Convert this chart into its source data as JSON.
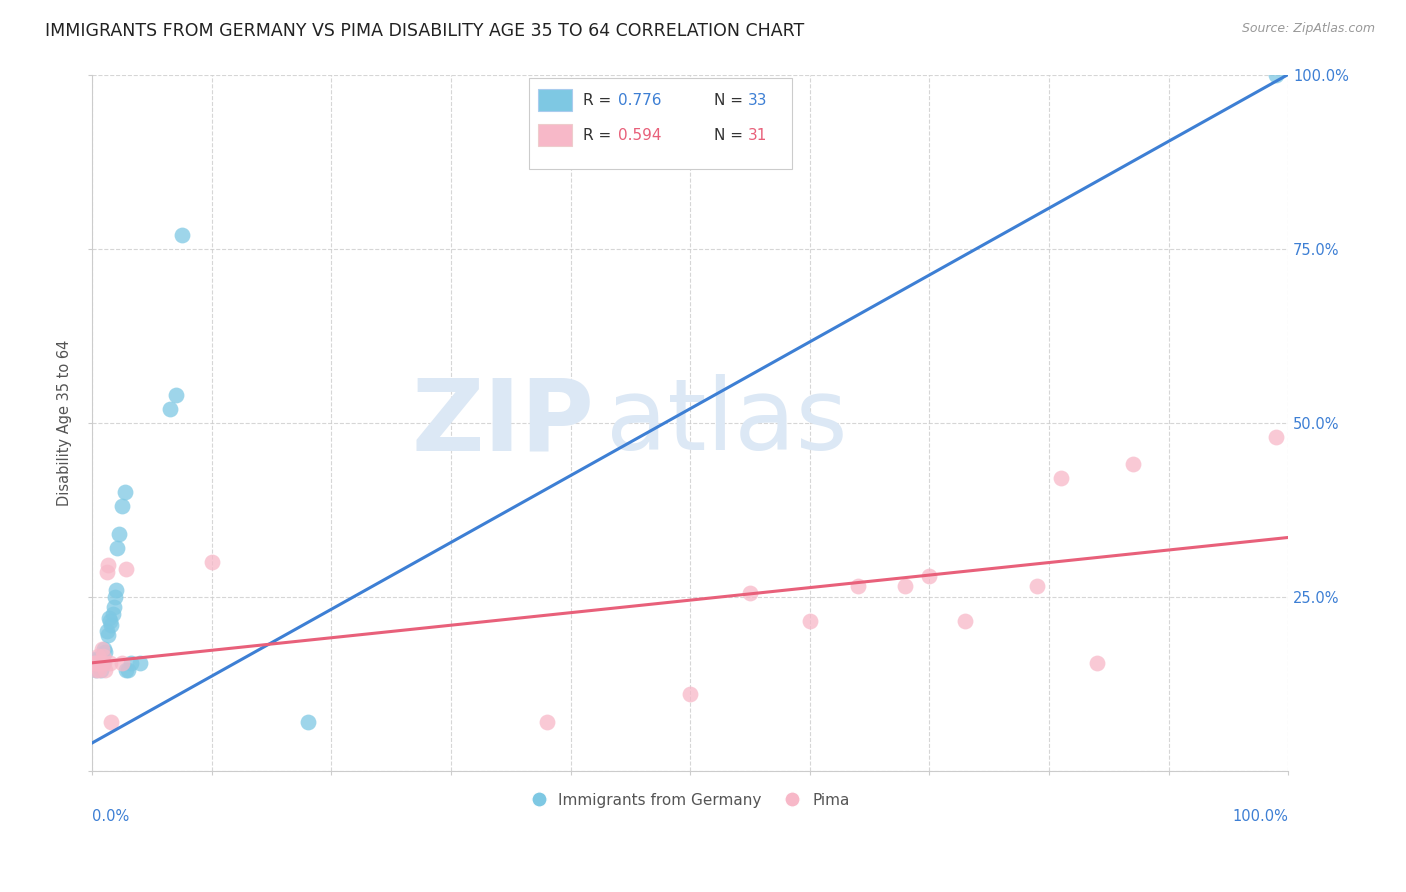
{
  "title": "IMMIGRANTS FROM GERMANY VS PIMA DISABILITY AGE 35 TO 64 CORRELATION CHART",
  "source": "Source: ZipAtlas.com",
  "ylabel": "Disability Age 35 to 64",
  "watermark_zip": "ZIP",
  "watermark_atlas": "atlas",
  "blue_color": "#7ec8e3",
  "pink_color": "#f7b8c8",
  "blue_line_color": "#3d7fd4",
  "pink_line_color": "#e8607a",
  "blue_line": [
    0.0,
    0.04,
    1.0,
    1.0
  ],
  "pink_line": [
    0.0,
    0.155,
    1.0,
    0.335
  ],
  "blue_scatter": [
    [
      0.001,
      0.155
    ],
    [
      0.002,
      0.16
    ],
    [
      0.003,
      0.145
    ],
    [
      0.004,
      0.155
    ],
    [
      0.005,
      0.16
    ],
    [
      0.006,
      0.155
    ],
    [
      0.007,
      0.145
    ],
    [
      0.008,
      0.165
    ],
    [
      0.009,
      0.155
    ],
    [
      0.01,
      0.175
    ],
    [
      0.011,
      0.17
    ],
    [
      0.012,
      0.2
    ],
    [
      0.013,
      0.195
    ],
    [
      0.014,
      0.22
    ],
    [
      0.015,
      0.215
    ],
    [
      0.016,
      0.21
    ],
    [
      0.017,
      0.225
    ],
    [
      0.018,
      0.235
    ],
    [
      0.019,
      0.25
    ],
    [
      0.02,
      0.26
    ],
    [
      0.021,
      0.32
    ],
    [
      0.022,
      0.34
    ],
    [
      0.025,
      0.38
    ],
    [
      0.027,
      0.4
    ],
    [
      0.028,
      0.145
    ],
    [
      0.03,
      0.145
    ],
    [
      0.032,
      0.155
    ],
    [
      0.04,
      0.155
    ],
    [
      0.065,
      0.52
    ],
    [
      0.07,
      0.54
    ],
    [
      0.075,
      0.77
    ],
    [
      0.18,
      0.07
    ],
    [
      0.99,
      1.0
    ]
  ],
  "pink_scatter": [
    [
      0.001,
      0.155
    ],
    [
      0.002,
      0.155
    ],
    [
      0.003,
      0.145
    ],
    [
      0.004,
      0.155
    ],
    [
      0.005,
      0.165
    ],
    [
      0.006,
      0.145
    ],
    [
      0.007,
      0.155
    ],
    [
      0.008,
      0.175
    ],
    [
      0.009,
      0.165
    ],
    [
      0.01,
      0.155
    ],
    [
      0.011,
      0.145
    ],
    [
      0.012,
      0.285
    ],
    [
      0.013,
      0.295
    ],
    [
      0.015,
      0.155
    ],
    [
      0.016,
      0.07
    ],
    [
      0.025,
      0.155
    ],
    [
      0.028,
      0.29
    ],
    [
      0.1,
      0.3
    ],
    [
      0.38,
      0.07
    ],
    [
      0.5,
      0.11
    ],
    [
      0.55,
      0.255
    ],
    [
      0.6,
      0.215
    ],
    [
      0.64,
      0.265
    ],
    [
      0.68,
      0.265
    ],
    [
      0.7,
      0.28
    ],
    [
      0.73,
      0.215
    ],
    [
      0.79,
      0.265
    ],
    [
      0.81,
      0.42
    ],
    [
      0.84,
      0.155
    ],
    [
      0.87,
      0.44
    ],
    [
      0.99,
      0.48
    ]
  ],
  "xlim": [
    0,
    1
  ],
  "ylim": [
    0,
    1
  ],
  "yticks": [
    0.0,
    0.25,
    0.5,
    0.75,
    1.0
  ],
  "ytick_labels": [
    "",
    "25.0%",
    "50.0%",
    "75.0%",
    "100.0%"
  ],
  "right_axis_color": "#3d7fd4",
  "title_fontsize": 12.5,
  "axis_label_fontsize": 10
}
